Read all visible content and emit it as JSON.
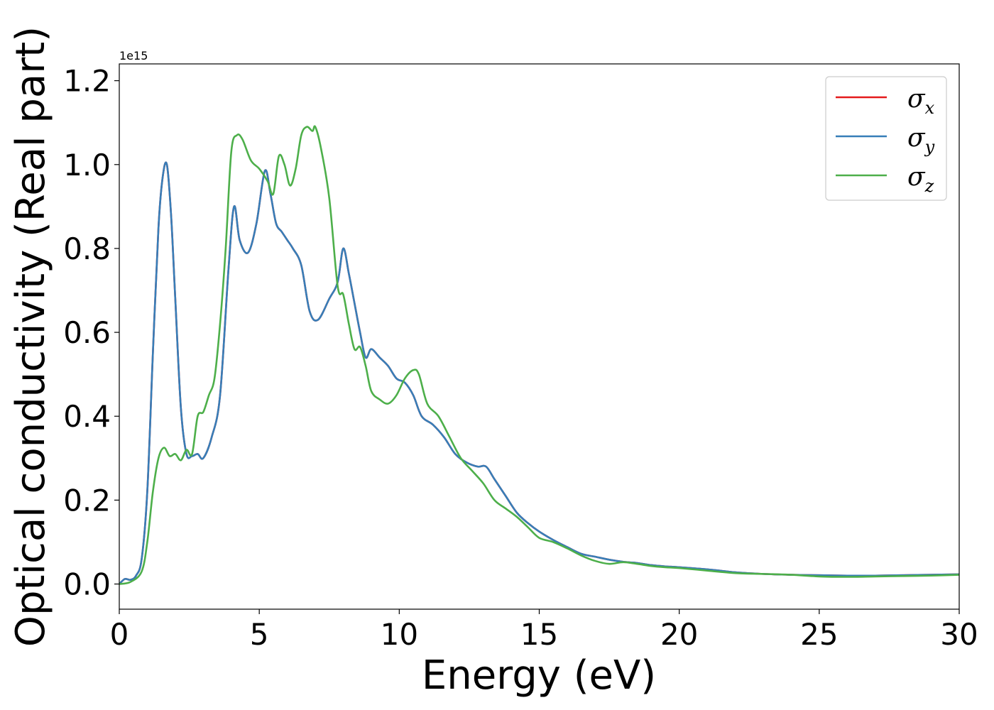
{
  "chart_data": {
    "type": "line",
    "title": "",
    "xlabel": "Energy (eV)",
    "ylabel": "Optical conductivity (Real part)",
    "y_offset_label": "1e15",
    "xlim": [
      0,
      30
    ],
    "ylim": [
      -0.06,
      1.24
    ],
    "xticks": [
      0,
      5,
      10,
      15,
      20,
      25,
      30
    ],
    "xtick_labels": [
      "0",
      "5",
      "10",
      "15",
      "20",
      "25",
      "30"
    ],
    "yticks": [
      0.0,
      0.2,
      0.4,
      0.6,
      0.8,
      1.0,
      1.2
    ],
    "ytick_labels": [
      "0.0",
      "0.2",
      "0.4",
      "0.6",
      "0.8",
      "1.0",
      "1.2"
    ],
    "grid": false,
    "legend_position": "top-right",
    "series": [
      {
        "name": "σx",
        "legend_base": "σ",
        "legend_sub": "x",
        "color": "#e41a1c",
        "x": [
          0,
          0.2,
          0.4,
          0.6,
          0.8,
          1.0,
          1.2,
          1.4,
          1.55,
          1.7,
          1.85,
          2.0,
          2.2,
          2.4,
          2.6,
          2.8,
          3.0,
          3.3,
          3.6,
          3.9,
          4.1,
          4.3,
          4.6,
          4.9,
          5.2,
          5.4,
          5.6,
          5.8,
          6.0,
          6.2,
          6.5,
          6.8,
          7.1,
          7.5,
          7.8,
          8.0,
          8.2,
          8.4,
          8.6,
          8.8,
          9.0,
          9.3,
          9.6,
          9.9,
          10.2,
          10.5,
          10.8,
          11.2,
          11.6,
          12.0,
          12.4,
          12.8,
          13.1,
          13.4,
          13.8,
          14.2,
          14.6,
          15.0,
          15.5,
          16.0,
          16.5,
          17.0,
          17.5,
          18.0,
          18.5,
          19.0,
          19.5,
          20.0,
          21.0,
          22.0,
          23.0,
          24.0,
          25.0,
          26.0,
          27.0,
          28.0,
          29.0,
          30.0
        ],
        "y": [
          0.0,
          0.012,
          0.01,
          0.02,
          0.06,
          0.22,
          0.55,
          0.85,
          0.97,
          1.0,
          0.88,
          0.68,
          0.42,
          0.31,
          0.305,
          0.31,
          0.3,
          0.35,
          0.45,
          0.75,
          0.9,
          0.82,
          0.79,
          0.86,
          0.985,
          0.93,
          0.86,
          0.84,
          0.82,
          0.8,
          0.76,
          0.65,
          0.63,
          0.68,
          0.72,
          0.8,
          0.74,
          0.67,
          0.6,
          0.54,
          0.56,
          0.54,
          0.52,
          0.49,
          0.48,
          0.45,
          0.4,
          0.38,
          0.35,
          0.31,
          0.29,
          0.28,
          0.28,
          0.25,
          0.21,
          0.17,
          0.145,
          0.125,
          0.105,
          0.088,
          0.072,
          0.065,
          0.058,
          0.053,
          0.05,
          0.045,
          0.042,
          0.04,
          0.035,
          0.028,
          0.024,
          0.022,
          0.021,
          0.02,
          0.02,
          0.021,
          0.022,
          0.023
        ]
      },
      {
        "name": "σy",
        "legend_base": "σ",
        "legend_sub": "y",
        "color": "#377eb8",
        "x": [
          0,
          0.2,
          0.4,
          0.6,
          0.8,
          1.0,
          1.2,
          1.4,
          1.55,
          1.7,
          1.85,
          2.0,
          2.2,
          2.4,
          2.6,
          2.8,
          3.0,
          3.3,
          3.6,
          3.9,
          4.1,
          4.3,
          4.6,
          4.9,
          5.2,
          5.4,
          5.6,
          5.8,
          6.0,
          6.2,
          6.5,
          6.8,
          7.1,
          7.5,
          7.8,
          8.0,
          8.2,
          8.4,
          8.6,
          8.8,
          9.0,
          9.3,
          9.6,
          9.9,
          10.2,
          10.5,
          10.8,
          11.2,
          11.6,
          12.0,
          12.4,
          12.8,
          13.1,
          13.4,
          13.8,
          14.2,
          14.6,
          15.0,
          15.5,
          16.0,
          16.5,
          17.0,
          17.5,
          18.0,
          18.5,
          19.0,
          19.5,
          20.0,
          21.0,
          22.0,
          23.0,
          24.0,
          25.0,
          26.0,
          27.0,
          28.0,
          29.0,
          30.0
        ],
        "y": [
          0.0,
          0.012,
          0.01,
          0.02,
          0.06,
          0.22,
          0.55,
          0.85,
          0.97,
          1.0,
          0.88,
          0.68,
          0.42,
          0.31,
          0.305,
          0.31,
          0.3,
          0.35,
          0.45,
          0.75,
          0.9,
          0.82,
          0.79,
          0.86,
          0.985,
          0.93,
          0.86,
          0.84,
          0.82,
          0.8,
          0.76,
          0.65,
          0.63,
          0.68,
          0.72,
          0.8,
          0.74,
          0.67,
          0.6,
          0.54,
          0.56,
          0.54,
          0.52,
          0.49,
          0.48,
          0.45,
          0.4,
          0.38,
          0.35,
          0.31,
          0.29,
          0.28,
          0.28,
          0.25,
          0.21,
          0.17,
          0.145,
          0.125,
          0.105,
          0.088,
          0.072,
          0.065,
          0.058,
          0.053,
          0.05,
          0.045,
          0.042,
          0.04,
          0.035,
          0.028,
          0.024,
          0.022,
          0.021,
          0.02,
          0.02,
          0.021,
          0.022,
          0.023
        ]
      },
      {
        "name": "σz",
        "legend_base": "σ",
        "legend_sub": "z",
        "color": "#4daf4a",
        "x": [
          0,
          0.4,
          0.8,
          1.0,
          1.2,
          1.4,
          1.6,
          1.8,
          2.0,
          2.2,
          2.4,
          2.6,
          2.8,
          3.0,
          3.2,
          3.4,
          3.6,
          3.8,
          4.0,
          4.2,
          4.4,
          4.7,
          5.0,
          5.3,
          5.5,
          5.7,
          5.9,
          6.1,
          6.3,
          6.5,
          6.7,
          6.9,
          7.0,
          7.2,
          7.5,
          7.8,
          8.0,
          8.2,
          8.4,
          8.6,
          8.8,
          9.0,
          9.3,
          9.6,
          9.9,
          10.2,
          10.5,
          10.7,
          11.0,
          11.4,
          11.8,
          12.2,
          12.6,
          13.0,
          13.4,
          13.8,
          14.2,
          14.6,
          15.0,
          15.5,
          16.0,
          16.5,
          17.0,
          17.5,
          18.0,
          18.5,
          19.0,
          19.5,
          20.0,
          21.0,
          22.0,
          23.0,
          24.0,
          25.0,
          26.0,
          27.0,
          28.0,
          29.0,
          30.0
        ],
        "y": [
          0.0,
          0.005,
          0.03,
          0.1,
          0.22,
          0.3,
          0.325,
          0.305,
          0.31,
          0.295,
          0.32,
          0.31,
          0.4,
          0.41,
          0.45,
          0.49,
          0.62,
          0.8,
          1.03,
          1.07,
          1.06,
          1.01,
          0.99,
          0.96,
          0.93,
          1.02,
          1.0,
          0.95,
          0.99,
          1.07,
          1.09,
          1.08,
          1.09,
          1.04,
          0.92,
          0.71,
          0.69,
          0.62,
          0.56,
          0.565,
          0.52,
          0.46,
          0.44,
          0.43,
          0.45,
          0.49,
          0.51,
          0.5,
          0.43,
          0.4,
          0.35,
          0.3,
          0.27,
          0.24,
          0.2,
          0.18,
          0.16,
          0.135,
          0.11,
          0.1,
          0.085,
          0.068,
          0.055,
          0.048,
          0.052,
          0.048,
          0.043,
          0.04,
          0.038,
          0.032,
          0.026,
          0.024,
          0.022,
          0.018,
          0.017,
          0.018,
          0.019,
          0.02,
          0.022
        ]
      }
    ]
  }
}
